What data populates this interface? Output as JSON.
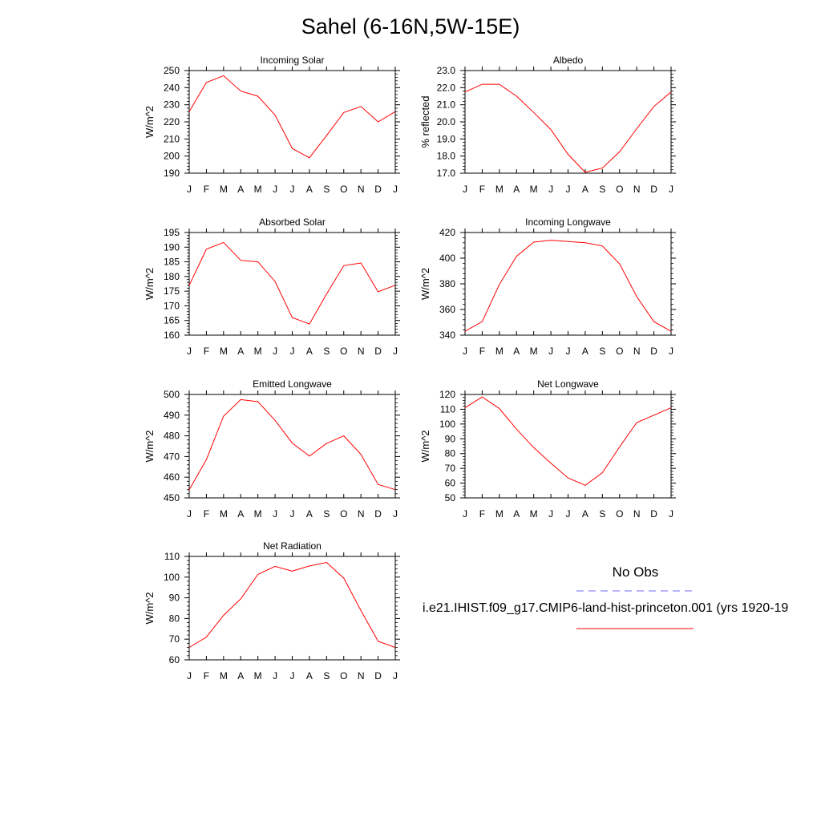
{
  "title": "Sahel (6-16N,5W-15E)",
  "colors": {
    "model_line": "#ff0000",
    "obs_line": "#6f6fff",
    "axes": "#000000"
  },
  "legend": {
    "obs_label": "No Obs",
    "model_label": "i.e21.IHIST.f09_g17.CMIP6-land-hist-princeton.001 (yrs 1920-19"
  },
  "chart_data": [
    {
      "type": "line",
      "title": "Incoming Solar",
      "ylabel": "W/m^2",
      "categories": [
        "J",
        "F",
        "M",
        "A",
        "M",
        "J",
        "J",
        "A",
        "S",
        "O",
        "N",
        "D",
        "J"
      ],
      "ylim": [
        190,
        250
      ],
      "yticks": [
        190,
        200,
        210,
        220,
        230,
        240,
        250
      ],
      "ytick_labels": [
        "190",
        "200",
        "210",
        "220",
        "230",
        "240",
        "250"
      ],
      "series": [
        {
          "values": [
            226,
            243,
            247,
            238,
            235,
            224,
            204.5,
            199,
            212,
            225.5,
            229,
            220,
            226
          ]
        }
      ]
    },
    {
      "type": "line",
      "title": "Albedo",
      "ylabel": "% reflected",
      "categories": [
        "J",
        "F",
        "M",
        "A",
        "M",
        "J",
        "J",
        "A",
        "S",
        "O",
        "N",
        "D",
        "J"
      ],
      "ylim": [
        17,
        23
      ],
      "yticks": [
        17,
        18,
        19,
        20,
        21,
        22,
        23
      ],
      "ytick_labels": [
        "17.0",
        "18.0",
        "19.0",
        "20.0",
        "21.0",
        "22.0",
        "23.0"
      ],
      "series": [
        {
          "values": [
            21.75,
            22.2,
            22.2,
            21.5,
            20.55,
            19.55,
            18.1,
            17.05,
            17.3,
            18.25,
            19.6,
            20.9,
            21.75
          ]
        }
      ]
    },
    {
      "type": "line",
      "title": "Absorbed Solar",
      "ylabel": "W/m^2",
      "categories": [
        "J",
        "F",
        "M",
        "A",
        "M",
        "J",
        "J",
        "A",
        "S",
        "O",
        "N",
        "D",
        "J"
      ],
      "ylim": [
        160,
        195
      ],
      "yticks": [
        160,
        165,
        170,
        175,
        180,
        185,
        190,
        195
      ],
      "ytick_labels": [
        "160",
        "165",
        "170",
        "175",
        "180",
        "185",
        "190",
        "195"
      ],
      "series": [
        {
          "values": [
            177,
            189.3,
            191.6,
            185.5,
            185,
            178.3,
            166,
            163.8,
            174,
            183.7,
            184.6,
            174.8,
            177
          ]
        }
      ]
    },
    {
      "type": "line",
      "title": "Incoming Longwave",
      "ylabel": "W/m^2",
      "categories": [
        "J",
        "F",
        "M",
        "A",
        "M",
        "J",
        "J",
        "A",
        "S",
        "O",
        "N",
        "D",
        "J"
      ],
      "ylim": [
        340,
        420
      ],
      "yticks": [
        340,
        360,
        380,
        400,
        420
      ],
      "ytick_labels": [
        "340",
        "360",
        "380",
        "400",
        "420"
      ],
      "series": [
        {
          "values": [
            343,
            350.5,
            379.5,
            401.5,
            412.5,
            414,
            413,
            412,
            409.5,
            395.5,
            370,
            350.5,
            343
          ]
        }
      ]
    },
    {
      "type": "line",
      "title": "Emitted Longwave",
      "ylabel": "W/m^2",
      "categories": [
        "J",
        "F",
        "M",
        "A",
        "M",
        "J",
        "J",
        "A",
        "S",
        "O",
        "N",
        "D",
        "J"
      ],
      "ylim": [
        450,
        500
      ],
      "yticks": [
        450,
        460,
        470,
        480,
        490,
        500
      ],
      "ytick_labels": [
        "450",
        "460",
        "470",
        "480",
        "490",
        "500"
      ],
      "series": [
        {
          "values": [
            454,
            468.5,
            489.5,
            497.5,
            496.5,
            487.5,
            476.5,
            470.2,
            476.3,
            480,
            471,
            456.5,
            454
          ]
        }
      ]
    },
    {
      "type": "line",
      "title": "Net Longwave",
      "ylabel": "W/m^2",
      "categories": [
        "J",
        "F",
        "M",
        "A",
        "M",
        "J",
        "J",
        "A",
        "S",
        "O",
        "N",
        "D",
        "J"
      ],
      "ylim": [
        50,
        120
      ],
      "yticks": [
        50,
        60,
        70,
        80,
        90,
        100,
        110,
        120
      ],
      "ytick_labels": [
        "50",
        "60",
        "70",
        "80",
        "90",
        "100",
        "110",
        "120"
      ],
      "series": [
        {
          "values": [
            111,
            118.3,
            110.5,
            96.5,
            84,
            73.5,
            63.5,
            58.5,
            67,
            84.5,
            101,
            106,
            111
          ]
        }
      ]
    },
    {
      "type": "line",
      "title": "Net Radiation",
      "ylabel": "W/m^2",
      "categories": [
        "J",
        "F",
        "M",
        "A",
        "M",
        "J",
        "J",
        "A",
        "S",
        "O",
        "N",
        "D",
        "J"
      ],
      "ylim": [
        60,
        110
      ],
      "yticks": [
        60,
        70,
        80,
        90,
        100,
        110
      ],
      "ytick_labels": [
        "60",
        "70",
        "80",
        "90",
        "100",
        "110"
      ],
      "series": [
        {
          "values": [
            66,
            71,
            81.5,
            89.5,
            101.3,
            105.2,
            102.9,
            105.4,
            107.1,
            99.5,
            83.8,
            69,
            66
          ]
        }
      ]
    }
  ]
}
